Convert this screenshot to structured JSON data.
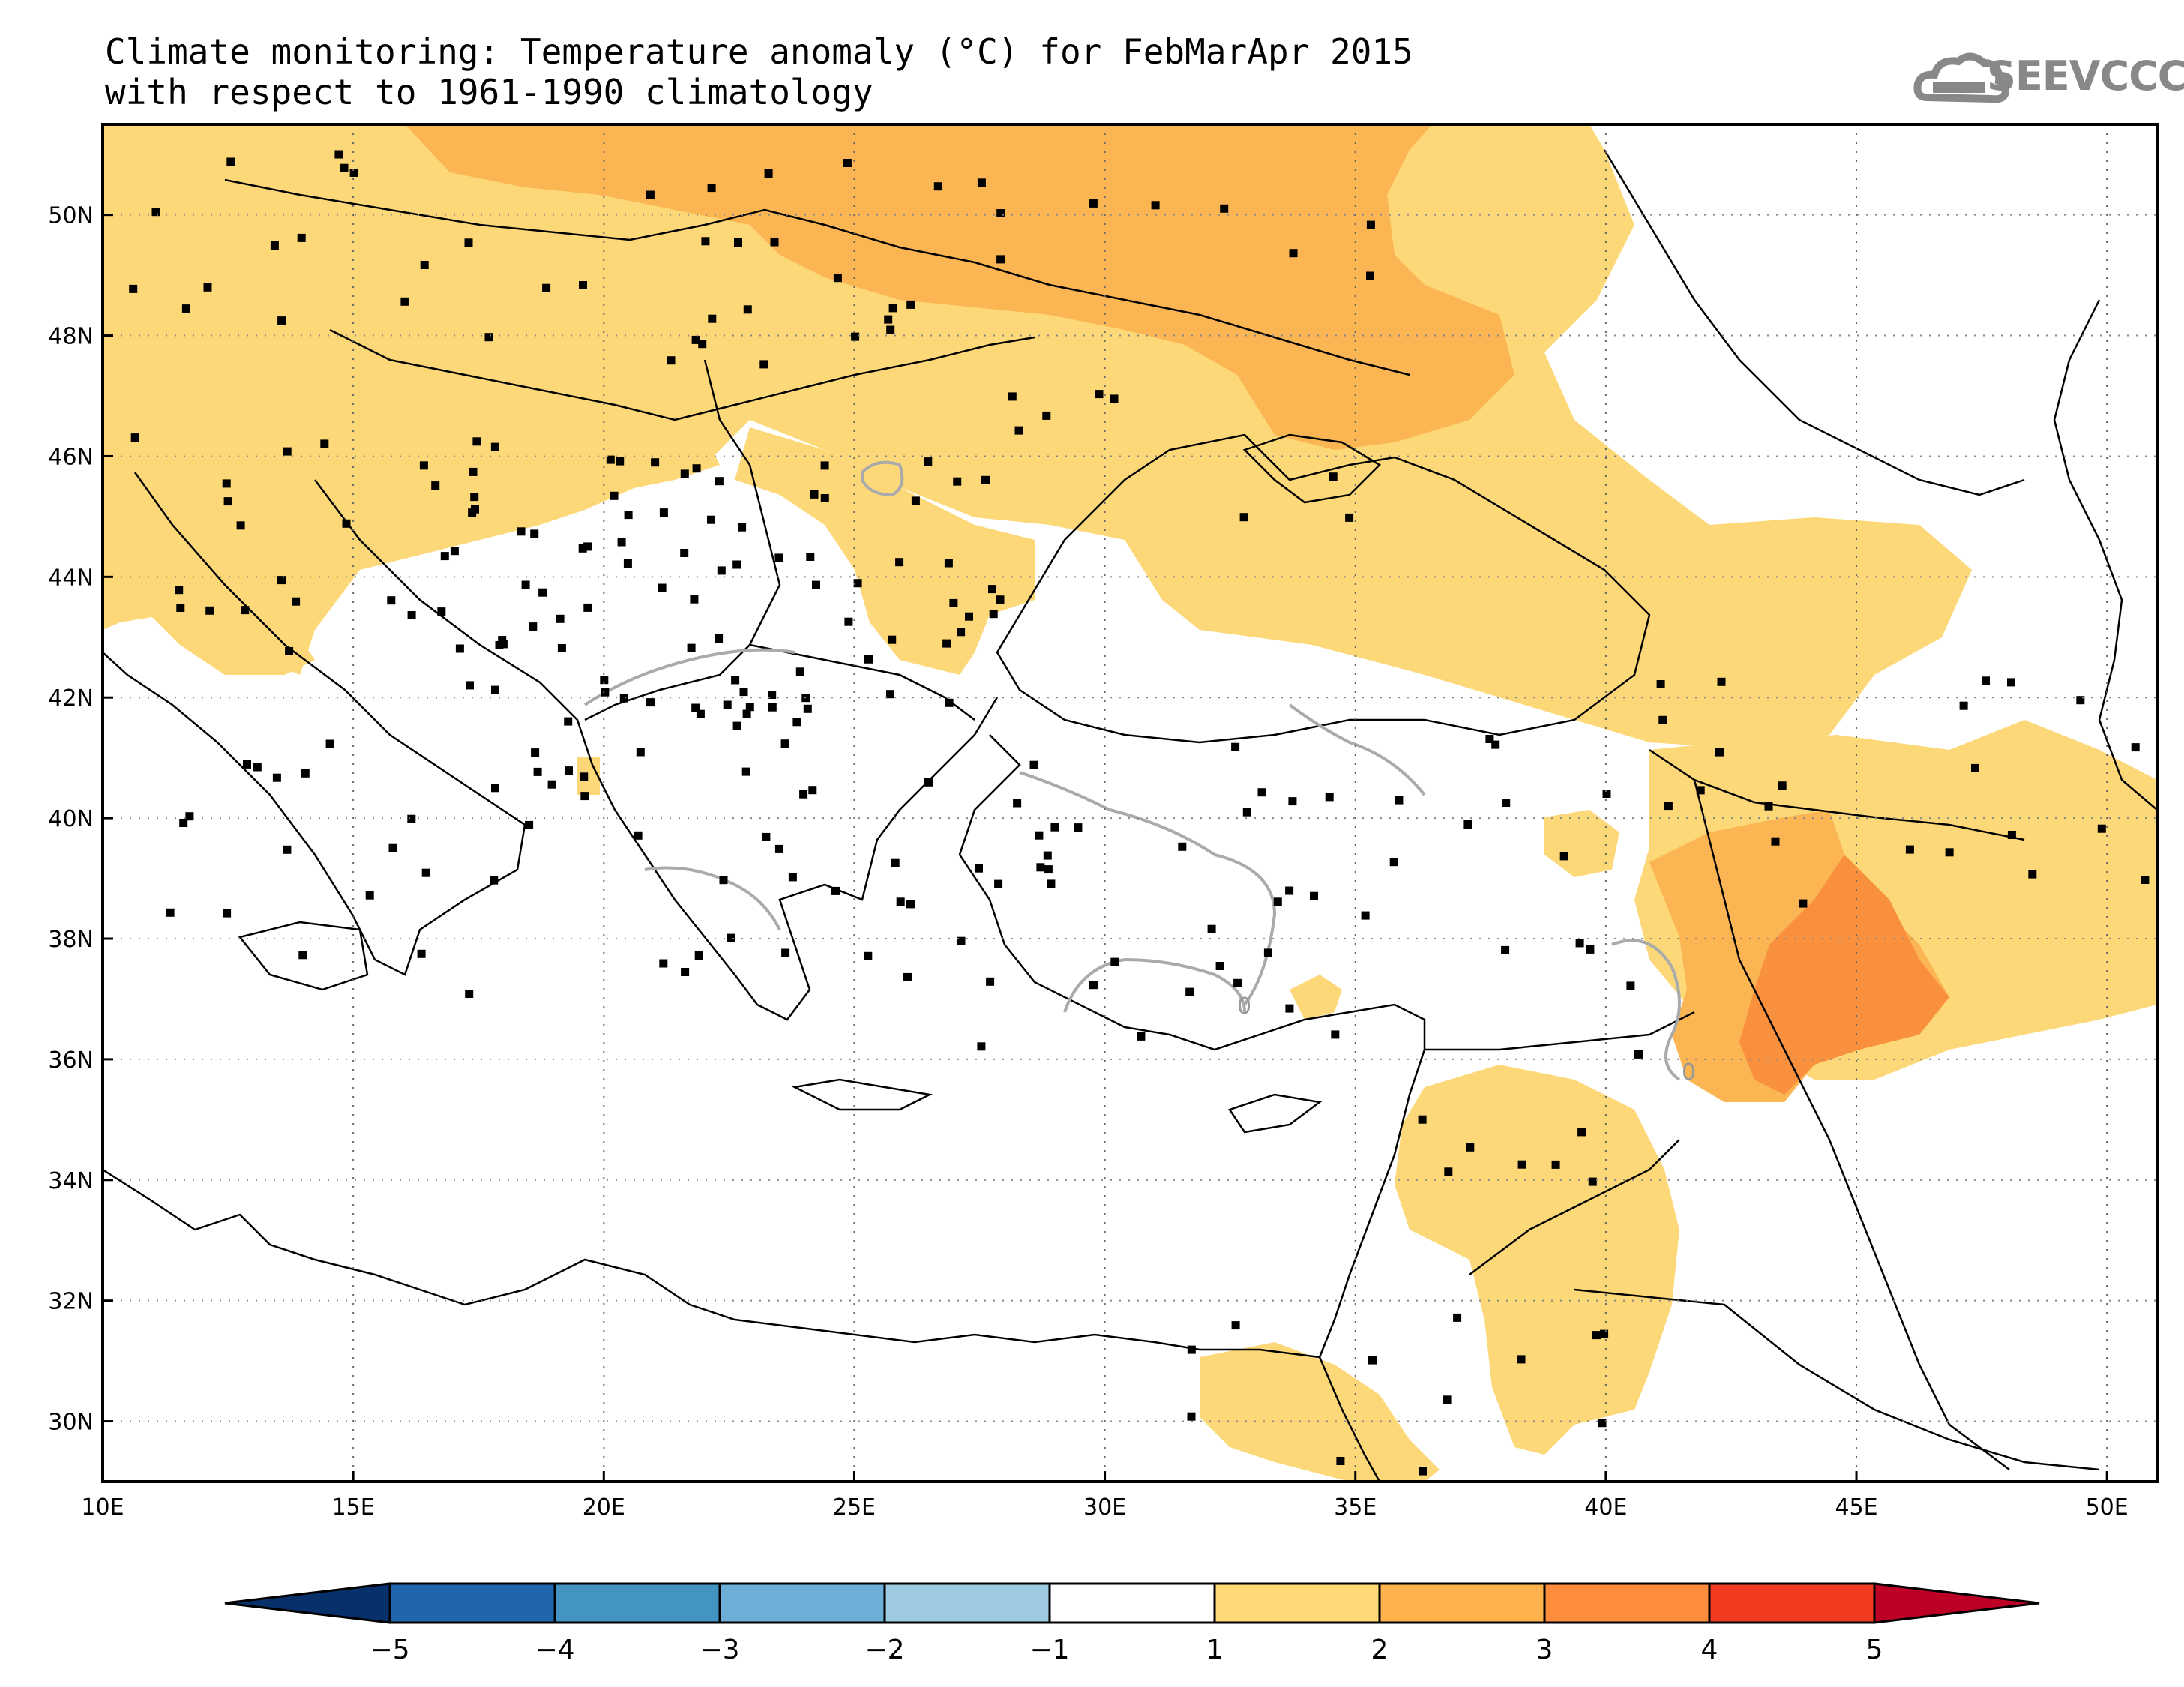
{
  "title": {
    "line1": "Climate monitoring: Temperature anomaly (°C) for FebMarApr 2015",
    "line2": "with respect to 1961-1990 climatology"
  },
  "logo": {
    "text": "SEEVCCC",
    "icon": "cloud-icon"
  },
  "map": {
    "lat_ticks": [
      "50N",
      "48N",
      "46N",
      "44N",
      "42N",
      "40N",
      "38N",
      "36N",
      "34N",
      "32N",
      "30N"
    ],
    "lon_ticks": [
      "10E",
      "15E",
      "20E",
      "25E",
      "30E",
      "35E",
      "40E",
      "45E",
      "50E"
    ],
    "lon_range": [
      10,
      51
    ],
    "lat_range": [
      29,
      51.5
    ],
    "contour_label": "0",
    "grid": "dotted"
  },
  "colorbar": {
    "labels": [
      "-5",
      "-4",
      "-3",
      "-2",
      "-1",
      "1",
      "2",
      "3",
      "4",
      "5"
    ],
    "colors": [
      "#08306b",
      "#2166ac",
      "#4393c3",
      "#6baed6",
      "#9ecae1",
      "#ffffff",
      "#fed976",
      "#feb24c",
      "#fd8d3c",
      "#f03b20",
      "#bd0026"
    ],
    "anomaly_fill": {
      "1to2": "#fdd878",
      "2to3": "#fbb552",
      "3to4": "#f9903d"
    }
  }
}
